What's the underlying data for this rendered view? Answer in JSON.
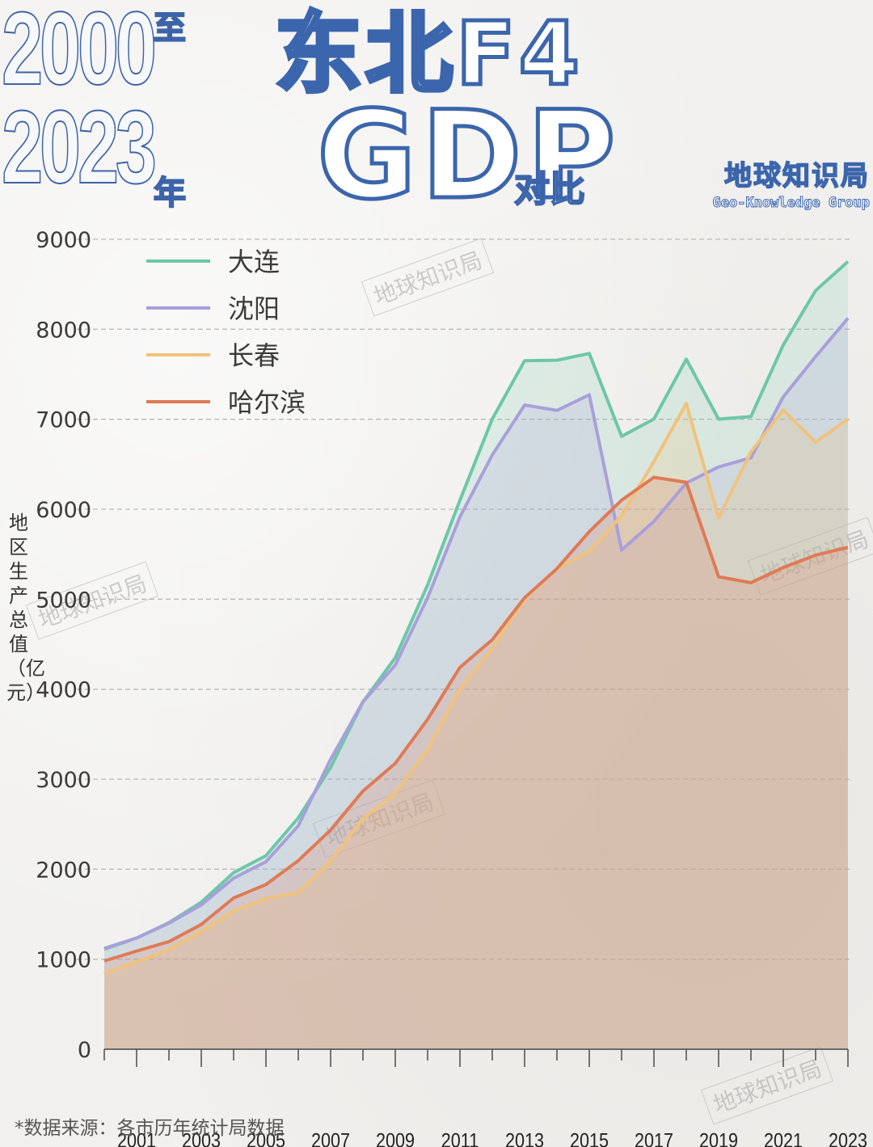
{
  "header": {
    "year_start": "2000",
    "year_end": "2023",
    "year_connector": "至",
    "year_suffix": "年",
    "title_line1": "东北F4",
    "title_line2": "GDP",
    "title_suffix": "对比"
  },
  "brand": {
    "name_cn": "地球知识局",
    "name_en": "Geo-Knowledge Group"
  },
  "watermark": "地球知识局",
  "footer": {
    "source": "*数据来源：各市历年统计局数据"
  },
  "colors": {
    "dalian": "#6cc7a8",
    "shenyang": "#a89fdb",
    "changchun": "#f0c27c",
    "harbin": "#e07a55",
    "grid": "#b9b9b9",
    "title_stroke": "#3b65ac"
  },
  "chart_data": {
    "type": "area",
    "title": "2000至2023年 东北F4 GDP对比",
    "xlabel": "",
    "ylabel": "地区生产总值（亿元）",
    "ylim": [
      0,
      9000
    ],
    "yticks": [
      0,
      1000,
      2000,
      3000,
      4000,
      5000,
      6000,
      7000,
      8000,
      9000
    ],
    "xticks_labeled": [
      "2001",
      "2003",
      "2005",
      "2007",
      "2009",
      "2011",
      "2013",
      "2015",
      "2017",
      "2019",
      "2021",
      "2023"
    ],
    "grid": "horizontal dashed",
    "legend_position": "upper left",
    "x": [
      2000,
      2001,
      2002,
      2003,
      2004,
      2005,
      2006,
      2007,
      2008,
      2009,
      2010,
      2011,
      2012,
      2013,
      2014,
      2015,
      2016,
      2017,
      2018,
      2019,
      2020,
      2021,
      2022,
      2023
    ],
    "series": [
      {
        "name": "大连",
        "key": "dalian",
        "values": [
          1110,
          1235,
          1406,
          1633,
          1962,
          2150,
          2570,
          3131,
          3858,
          4350,
          5158,
          6100,
          7003,
          7650,
          7656,
          7731,
          6810,
          7003,
          7668,
          7001,
          7030,
          7826,
          8430,
          8752
        ]
      },
      {
        "name": "沈阳",
        "key": "shenyang",
        "values": [
          1120,
          1236,
          1400,
          1603,
          1900,
          2084,
          2482,
          3221,
          3860,
          4268,
          5017,
          5915,
          6603,
          7158,
          7098,
          7272,
          5546,
          5865,
          6292,
          6470,
          6572,
          7249,
          7696,
          8122
        ]
      },
      {
        "name": "长春",
        "key": "changchun",
        "values": [
          840,
          970,
          1105,
          1310,
          1535,
          1675,
          1740,
          2089,
          2561,
          2848,
          3329,
          4003,
          4456,
          5003,
          5342,
          5530,
          5929,
          6530,
          7175,
          5904,
          6638,
          7103,
          6745,
          7002
        ]
      },
      {
        "name": "哈尔滨",
        "key": "harbin",
        "values": [
          980,
          1090,
          1195,
          1386,
          1680,
          1830,
          2095,
          2436,
          2868,
          3176,
          3665,
          4243,
          4550,
          5017,
          5340,
          5751,
          6101,
          6355,
          6300,
          5249,
          5184,
          5352,
          5490,
          5576
        ]
      }
    ]
  }
}
